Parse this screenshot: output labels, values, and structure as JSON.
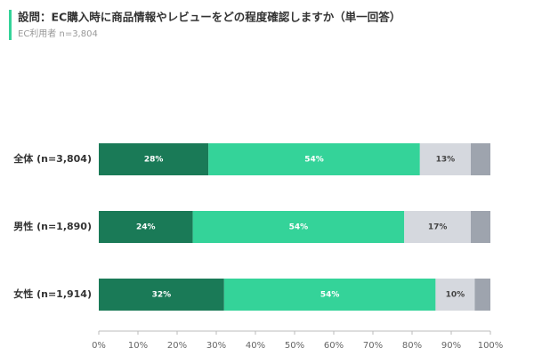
{
  "chart_data": {
    "type": "bar",
    "orientation": "horizontal",
    "stacked": true,
    "title": "設問：EC購入時に商品情報やレビューをどの程度確認しますか（単一回答）",
    "subtitle": "EC利用者 n=3,804",
    "categories": [
      "全体 (n=3,804)",
      "男性 (n=1,890)",
      "女性 (n=1,914)"
    ],
    "series": [
      {
        "color": "#1a7a57",
        "values": [
          28,
          24,
          32
        ],
        "value_labels": [
          "28%",
          "24%",
          "32%"
        ]
      },
      {
        "color": "#34d399",
        "values": [
          54,
          54,
          54
        ],
        "value_labels": [
          "54%",
          "54%",
          "54%"
        ]
      },
      {
        "color": "#d5d8de",
        "values": [
          13,
          17,
          10
        ],
        "value_labels": [
          "13%",
          "17%",
          "10%"
        ]
      },
      {
        "color": "#9ea4ae",
        "values": [
          5,
          5,
          4
        ],
        "value_labels": [
          null,
          null,
          null
        ]
      }
    ],
    "xlim": [
      0,
      100
    ],
    "xticks": [
      {
        "value": 0,
        "label": "0%"
      },
      {
        "value": 10,
        "label": "10%"
      },
      {
        "value": 20,
        "label": "20%"
      },
      {
        "value": 30,
        "label": "30%"
      },
      {
        "value": 40,
        "label": "40%"
      },
      {
        "value": 50,
        "label": "50%"
      },
      {
        "value": 60,
        "label": "60%"
      },
      {
        "value": 70,
        "label": "70%"
      },
      {
        "value": 80,
        "label": "80%"
      },
      {
        "value": 90,
        "label": "90%"
      },
      {
        "value": 100,
        "label": "100%"
      }
    ],
    "grid": false
  }
}
